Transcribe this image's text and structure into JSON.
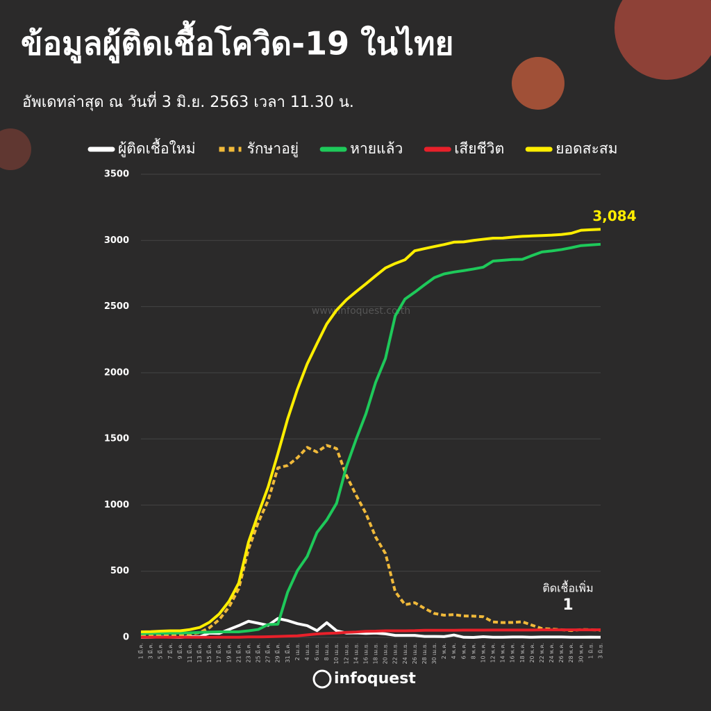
{
  "chart_data": {
    "type": "line",
    "title": "ข้อมูลผู้ติดเชื้อโควิด-19 ในไทย",
    "subtitle": "อัพเดทล่าสุด ณ วันที่   3 มิ.ย. 2563 เวลา 11.30 น.",
    "watermark": "www.infoquest.co.th",
    "logo": "infoquest",
    "categories": [
      "1 มี.ค.",
      "3 มี.ค.",
      "5 มี.ค.",
      "7 มี.ค.",
      "9 มี.ค.",
      "11 มี.ค.",
      "13 มี.ค.",
      "15 มี.ค.",
      "17 มี.ค.",
      "19 มี.ค.",
      "21 มี.ค.",
      "23 มี.ค.",
      "25 มี.ค.",
      "27 มี.ค.",
      "29 มี.ค.",
      "31 มี.ค.",
      "2 เม.ย.",
      "4 เม.ย.",
      "6 เม.ย.",
      "8 เม.ย.",
      "10 เม.ย.",
      "12 เม.ย.",
      "14 เม.ย.",
      "16 เม.ย.",
      "18 เม.ย.",
      "20 เม.ย.",
      "22 เม.ย.",
      "24 เม.ย.",
      "26 เม.ย.",
      "28 เม.ย.",
      "30 เม.ย.",
      "2 พ.ค.",
      "4 พ.ค.",
      "6 พ.ค.",
      "8 พ.ค.",
      "10 พ.ค.",
      "12 พ.ค.",
      "14 พ.ค.",
      "16 พ.ค.",
      "18 พ.ค.",
      "20 พ.ค.",
      "22 พ.ค.",
      "24 พ.ค.",
      "26 พ.ค.",
      "28 พ.ค.",
      "30 พ.ค.",
      "1 มิ.ย.",
      "3 มิ.ย."
    ],
    "series": [
      {
        "name": "ผู้ติดเชื้อใหม่",
        "color": "#ffffff",
        "dash": false,
        "values": [
          0,
          1,
          4,
          2,
          0,
          6,
          5,
          32,
          30,
          60,
          89,
          122,
          107,
          91,
          143,
          127,
          104,
          89,
          51,
          111,
          50,
          33,
          34,
          30,
          33,
          27,
          15,
          15,
          15,
          7,
          7,
          6,
          18,
          1,
          0,
          5,
          1,
          1,
          3,
          3,
          1,
          3,
          3,
          3,
          1,
          1,
          2,
          1
        ]
      },
      {
        "name": "รักษาอยู่",
        "color": "#f0b93a",
        "dash": true,
        "values": [
          13,
          12,
          15,
          17,
          16,
          24,
          36,
          73,
          134,
          229,
          368,
          667,
          870,
          1034,
          1281,
          1299,
          1358,
          1436,
          1401,
          1451,
          1427,
          1225,
          1075,
          937,
          758,
          634,
          346,
          247,
          262,
          219,
          181,
          168,
          172,
          162,
          161,
          156,
          117,
          112,
          113,
          118,
          92,
          67,
          63,
          58,
          52,
          59,
          58,
          55
        ]
      },
      {
        "name": "หายแล้ว",
        "color": "#1ec95a",
        "dash": false,
        "values": [
          28,
          31,
          31,
          32,
          33,
          34,
          38,
          40,
          42,
          42,
          42,
          50,
          60,
          97,
          100,
          342,
          505,
          612,
          793,
          888,
          1013,
          1288,
          1497,
          1689,
          1928,
          2108,
          2430,
          2557,
          2609,
          2665,
          2719,
          2747,
          2761,
          2772,
          2784,
          2798,
          2844,
          2850,
          2856,
          2857,
          2886,
          2913,
          2921,
          2931,
          2945,
          2961,
          2966,
          2971
        ]
      },
      {
        "name": "เสียชีวิต",
        "color": "#e8202a",
        "dash": false,
        "values": [
          1,
          1,
          1,
          1,
          1,
          1,
          1,
          1,
          1,
          1,
          1,
          4,
          4,
          5,
          7,
          10,
          12,
          19,
          26,
          30,
          33,
          38,
          41,
          46,
          47,
          50,
          50,
          50,
          51,
          54,
          54,
          54,
          54,
          55,
          55,
          55,
          56,
          56,
          56,
          56,
          56,
          57,
          57,
          57,
          57,
          57,
          57,
          58
        ]
      },
      {
        "name": "ยอดสะสม",
        "color": "#ffee00",
        "dash": false,
        "values": [
          42,
          43,
          47,
          50,
          50,
          59,
          75,
          114,
          177,
          272,
          411,
          721,
          934,
          1136,
          1388,
          1651,
          1875,
          2067,
          2220,
          2369,
          2473,
          2551,
          2613,
          2672,
          2733,
          2792,
          2826,
          2854,
          2922,
          2938,
          2954,
          2969,
          2987,
          2989,
          3000,
          3009,
          3017,
          3018,
          3025,
          3031,
          3034,
          3037,
          3040,
          3045,
          3054,
          3077,
          3081,
          3084
        ]
      }
    ],
    "annotations": [
      "3,084",
      "ติดเชื้อเพิ่ม",
      "1"
    ],
    "ylim": [
      0,
      3500
    ],
    "yticks": [
      0,
      500,
      1000,
      1500,
      2000,
      2500,
      3000,
      3500
    ],
    "grid": true
  }
}
